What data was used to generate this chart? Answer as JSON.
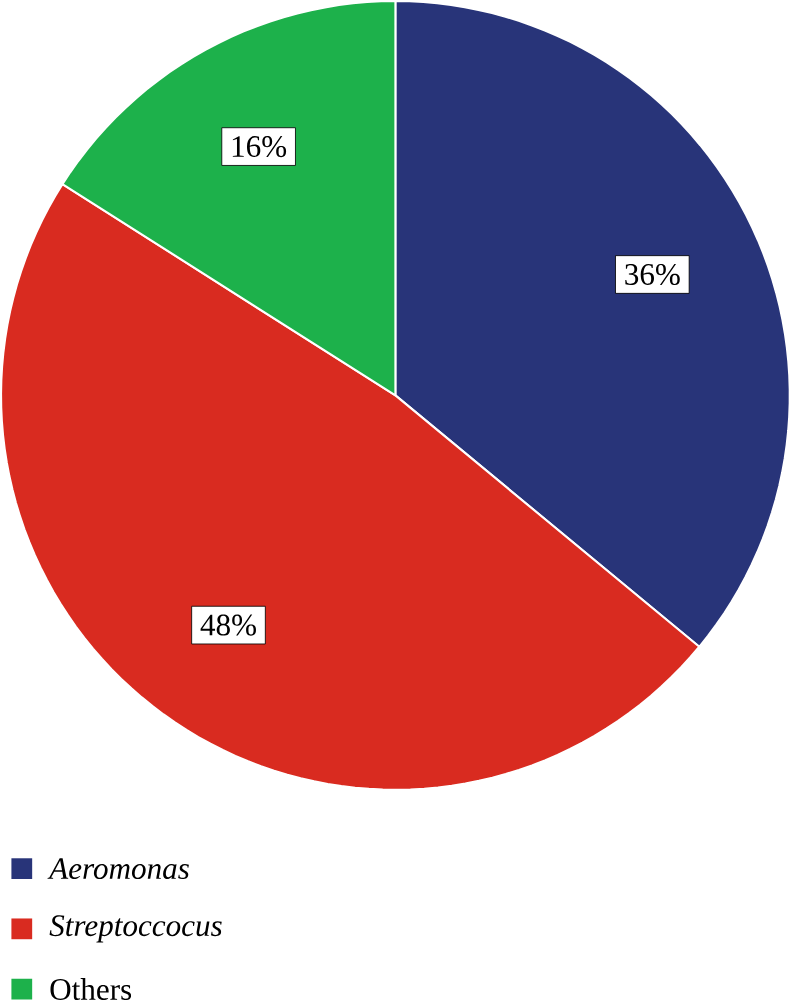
{
  "chart_data": {
    "type": "pie",
    "categories": [
      "*Aeromonas*",
      "*Streptoccocus*",
      "Others"
    ],
    "values": [
      36,
      48,
      16
    ],
    "colors": [
      "#283479",
      "#d92b20",
      "#1db14b"
    ],
    "value_labels": [
      "36%",
      "48%",
      "16%"
    ],
    "legend": "bottom left"
  }
}
